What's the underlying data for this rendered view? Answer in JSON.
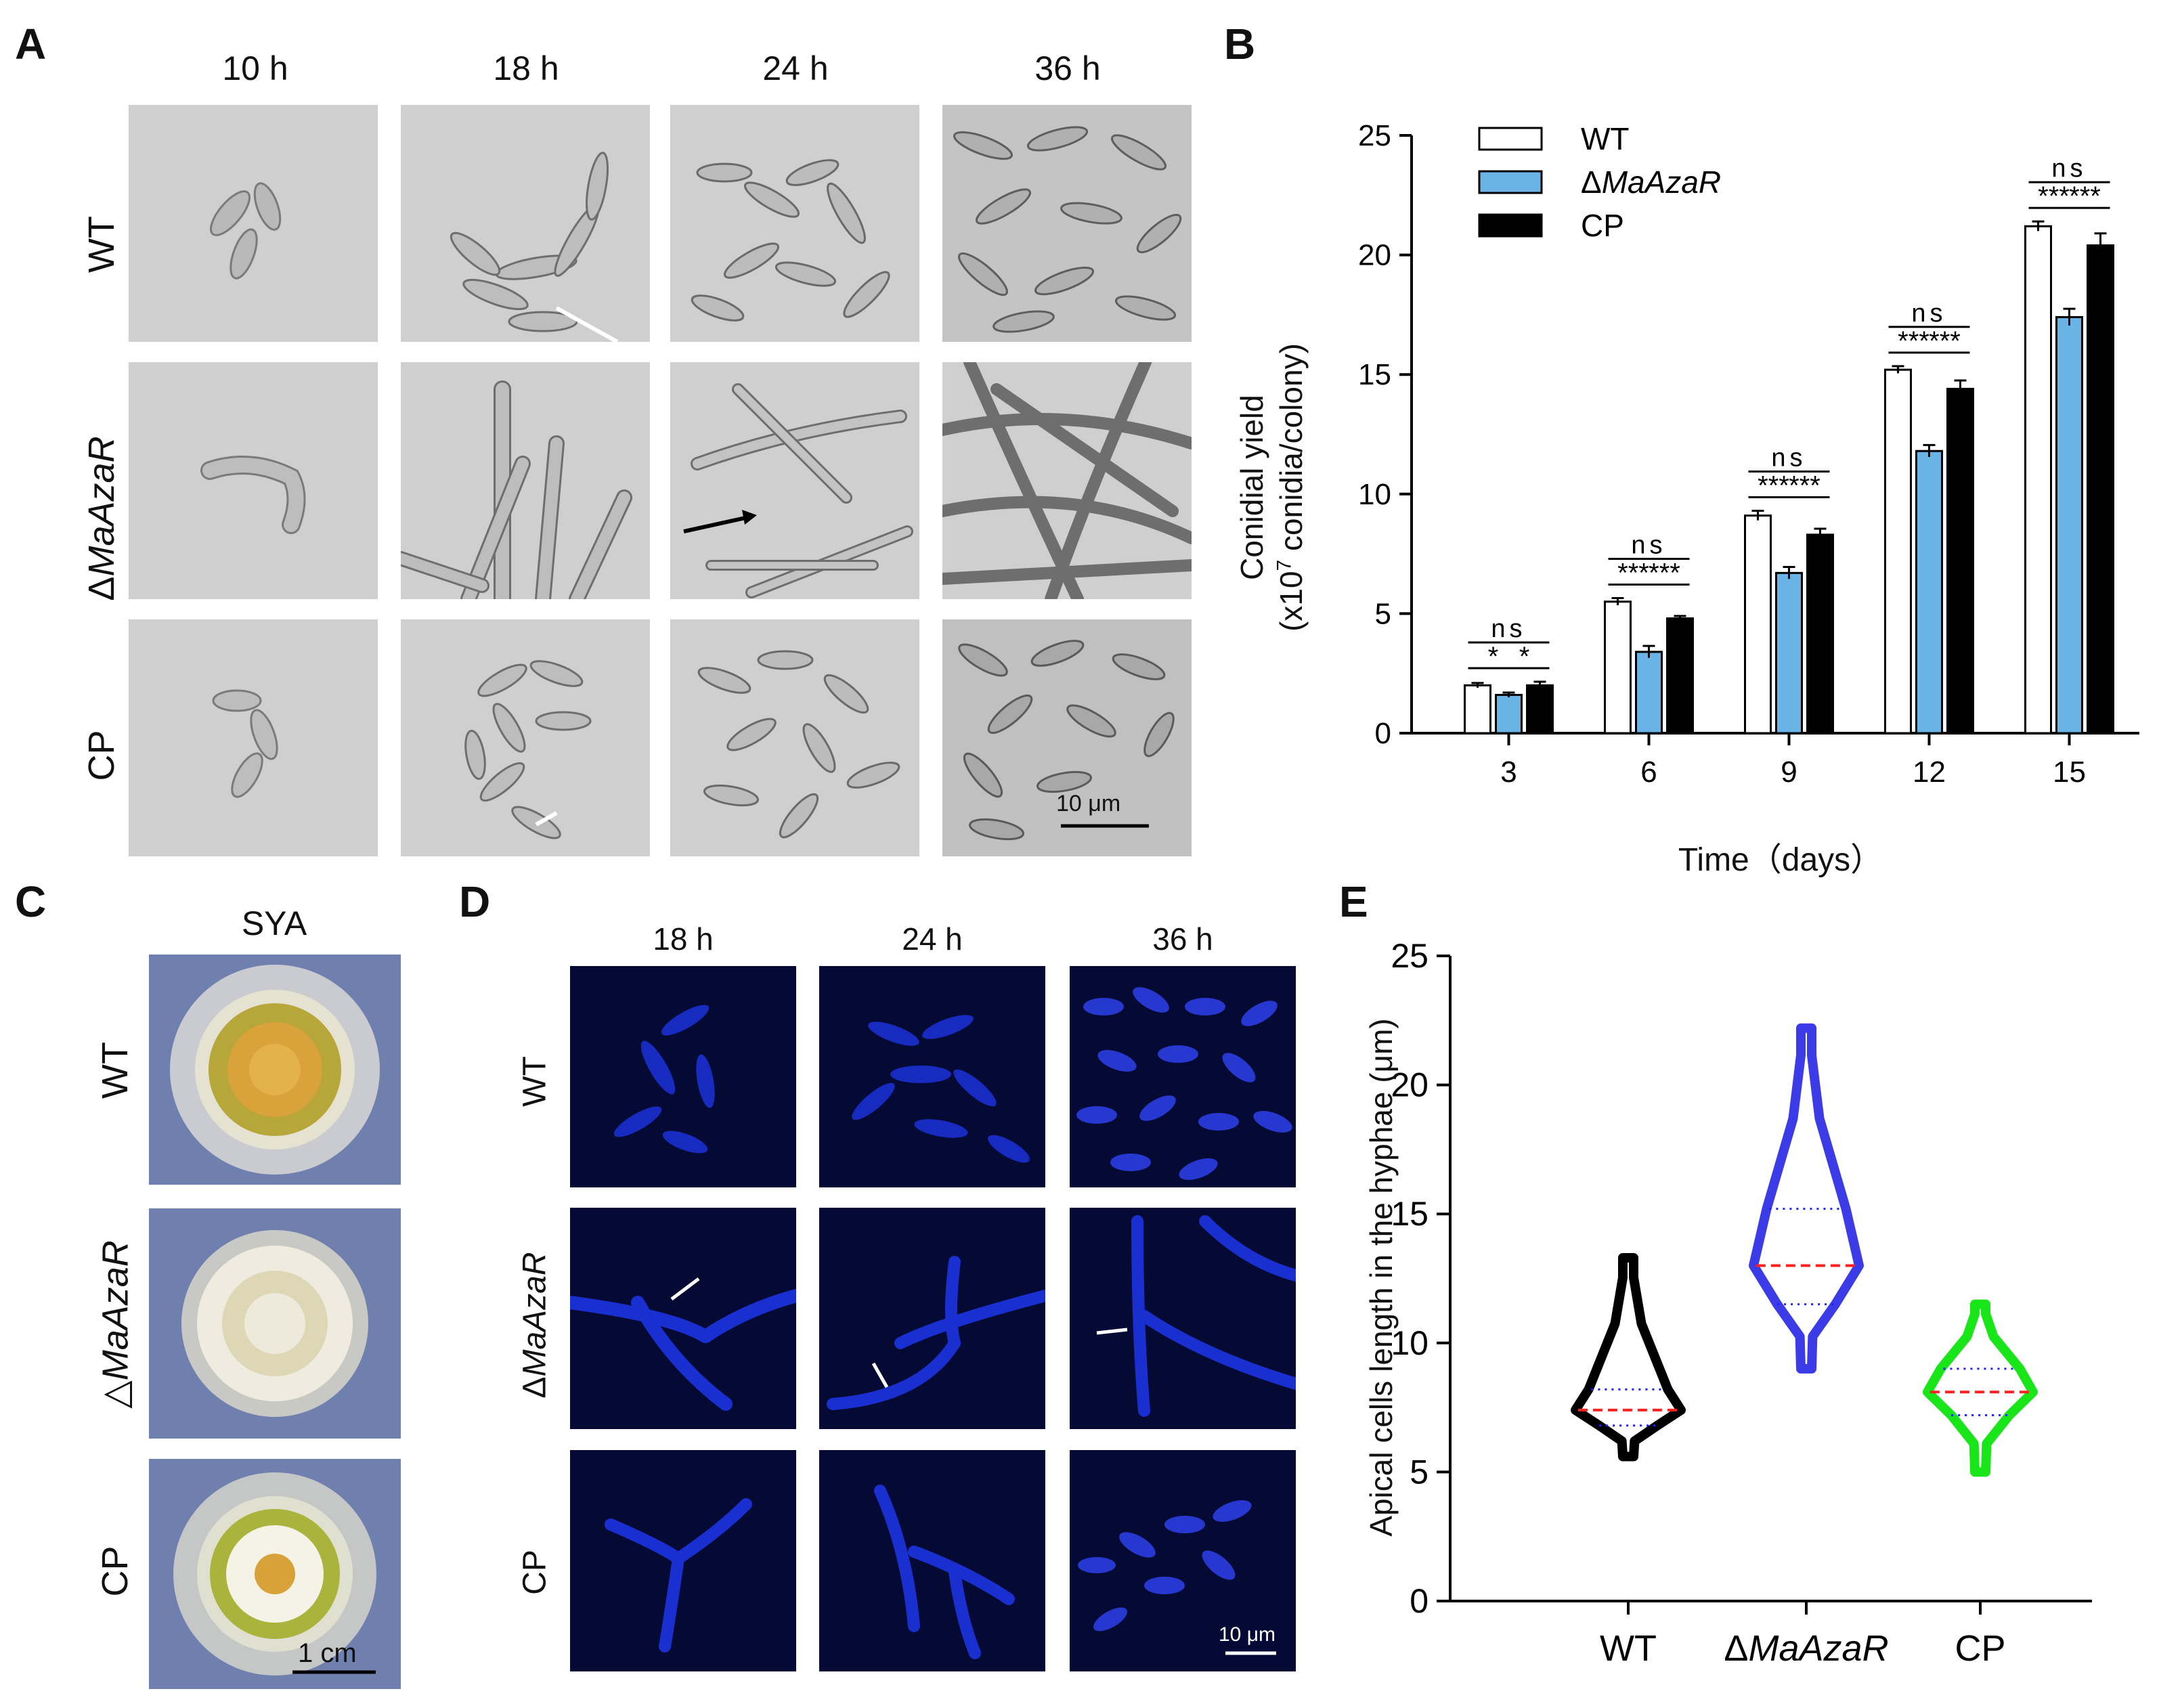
{
  "panels": {
    "A": {
      "label": "A",
      "time_points": [
        "10 h",
        "18 h",
        "24 h",
        "36 h"
      ],
      "rows": [
        {
          "label_prefix": "",
          "label_italic": "",
          "label_plain": "WT"
        },
        {
          "label_prefix": "Δ",
          "label_italic": "MaAzaR",
          "label_plain": ""
        },
        {
          "label_prefix": "",
          "label_italic": "",
          "label_plain": "CP"
        }
      ],
      "scale_bar": "10 μm"
    },
    "B": {
      "label": "B",
      "chart_data": {
        "type": "bar",
        "categories": [
          "3",
          "6",
          "9",
          "12",
          "15"
        ],
        "series": [
          {
            "name": "WT",
            "values": [
              2.0,
              5.5,
              9.1,
              15.2,
              21.2
            ],
            "errors": [
              0.1,
              0.15,
              0.2,
              0.15,
              0.2
            ],
            "color": "#ffffff"
          },
          {
            "name": "ΔMaAzaR",
            "values": [
              1.6,
              3.4,
              6.7,
              11.8,
              17.4
            ],
            "errors": [
              0.1,
              0.25,
              0.25,
              0.25,
              0.35
            ],
            "color": "#69b3e7"
          },
          {
            "name": "CP",
            "values": [
              2.0,
              4.8,
              8.3,
              14.4,
              20.4
            ],
            "errors": [
              0.15,
              0.1,
              0.25,
              0.35,
              0.5
            ],
            "color": "#000000"
          }
        ],
        "legend": [
          {
            "prefix": "",
            "italic": "",
            "plain": "WT"
          },
          {
            "prefix": "Δ",
            "italic": "MaAzaR",
            "plain": ""
          },
          {
            "prefix": "",
            "italic": "",
            "plain": "CP"
          }
        ],
        "significance": [
          {
            "ns": "ns",
            "left": "*",
            "right": "*"
          },
          {
            "ns": "ns",
            "left": "***",
            "right": "***"
          },
          {
            "ns": "ns",
            "left": "***",
            "right": "***"
          },
          {
            "ns": "ns",
            "left": "***",
            "right": "***"
          },
          {
            "ns": "ns",
            "left": "***",
            "right": "***"
          }
        ],
        "ylim": [
          0,
          25
        ],
        "yticks": [
          "0",
          "5",
          "10",
          "15",
          "20",
          "25"
        ],
        "ylabel_line1": "Conidial yield",
        "ylabel_line2_a": "(x10",
        "ylabel_line2_sup": "7",
        "ylabel_line2_b": " conidia/colony)",
        "xlabel": "Time（days）",
        "legend_position": "top-left"
      }
    },
    "C": {
      "label": "C",
      "medium": "SYA",
      "rows": [
        {
          "label_prefix": "",
          "label_italic": "",
          "label_plain": "WT"
        },
        {
          "label_prefix": "△",
          "label_italic": "MaAzaR",
          "label_plain": ""
        },
        {
          "label_prefix": "",
          "label_italic": "",
          "label_plain": "CP"
        }
      ],
      "scale_bar": "1 cm"
    },
    "D": {
      "label": "D",
      "time_points": [
        "18 h",
        "24 h",
        "36 h"
      ],
      "rows": [
        {
          "label_prefix": "",
          "label_italic": "",
          "label_plain": "WT"
        },
        {
          "label_prefix": "Δ",
          "label_italic": "MaAzaR",
          "label_plain": ""
        },
        {
          "label_prefix": "",
          "label_italic": "",
          "label_plain": "CP"
        }
      ],
      "scale_bar": "10 μm"
    },
    "E": {
      "label": "E",
      "chart_data": {
        "type": "violin",
        "categories": [
          {
            "prefix": "",
            "italic": "",
            "plain": "WT"
          },
          {
            "prefix": "Δ",
            "italic": "MaAzaR",
            "plain": ""
          },
          {
            "prefix": "",
            "italic": "",
            "plain": "CP"
          }
        ],
        "series": [
          {
            "name": "WT",
            "color": "#000000",
            "min": 5.6,
            "q1": 6.8,
            "median": 7.4,
            "q3": 8.2,
            "max": 13.3
          },
          {
            "name": "ΔMaAzaR",
            "color": "#3b3be8",
            "min": 9.0,
            "q1": 11.5,
            "median": 13.0,
            "q3": 15.2,
            "max": 22.2
          },
          {
            "name": "CP",
            "color": "#19e619",
            "min": 5.0,
            "q1": 7.2,
            "median": 8.1,
            "q3": 9.0,
            "max": 11.5
          }
        ],
        "ylim": [
          0,
          25
        ],
        "yticks": [
          "0",
          "5",
          "10",
          "15",
          "20",
          "25"
        ],
        "ylabel": "Apical cells length in the hyphae (μm)",
        "median_line_color": "#ff2020",
        "quartile_line_color": "#2020ff"
      }
    }
  }
}
